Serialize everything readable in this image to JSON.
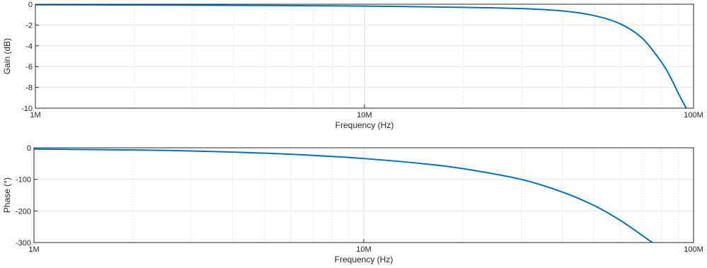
{
  "chart_data": [
    {
      "type": "line",
      "xlabel": "Frequency (Hz)",
      "ylabel": "Gain (dB)",
      "xscale": "log",
      "xlim": [
        1000000,
        100000000
      ],
      "ylim": [
        -10,
        0
      ],
      "xticks": [
        1000000,
        10000000,
        100000000
      ],
      "xtick_labels": [
        "1M",
        "10M",
        "100M"
      ],
      "yticks": [
        0,
        -2,
        -4,
        -6,
        -8,
        -10
      ],
      "ytick_labels": [
        "0",
        "-2",
        "-4",
        "-6",
        "-8",
        "-10"
      ],
      "grid": true,
      "line_color": "#0072BD",
      "series": [
        {
          "x": [
            1000000,
            2000000,
            5000000,
            10000000,
            20000000,
            30000000,
            40000000,
            50000000,
            60000000,
            70000000,
            80000000,
            85000000,
            90000000,
            95000000
          ],
          "y": [
            -0.05,
            -0.07,
            -0.12,
            -0.18,
            -0.3,
            -0.42,
            -0.65,
            -1.1,
            -1.9,
            -3.3,
            -5.6,
            -7.0,
            -8.6,
            -10
          ]
        }
      ]
    },
    {
      "type": "line",
      "xlabel": "Frequency (Hz)",
      "ylabel": "Phase (°)",
      "xscale": "log",
      "xlim": [
        1000000,
        100000000
      ],
      "ylim": [
        -300,
        0
      ],
      "xticks": [
        1000000,
        10000000,
        100000000
      ],
      "xtick_labels": [
        "1M",
        "10M",
        "100M"
      ],
      "yticks": [
        0,
        -100,
        -200,
        -300
      ],
      "ytick_labels": [
        "0",
        "-100",
        "-200",
        "-300"
      ],
      "grid": true,
      "line_color": "#0072BD",
      "series": [
        {
          "x": [
            1000000,
            2000000,
            3000000,
            5000000,
            7000000,
            10000000,
            15000000,
            20000000,
            30000000,
            40000000,
            50000000,
            60000000,
            70000000,
            75000000
          ],
          "y": [
            -4,
            -7,
            -10,
            -17,
            -24,
            -34,
            -50,
            -66,
            -100,
            -140,
            -183,
            -230,
            -278,
            -300
          ]
        }
      ]
    }
  ]
}
